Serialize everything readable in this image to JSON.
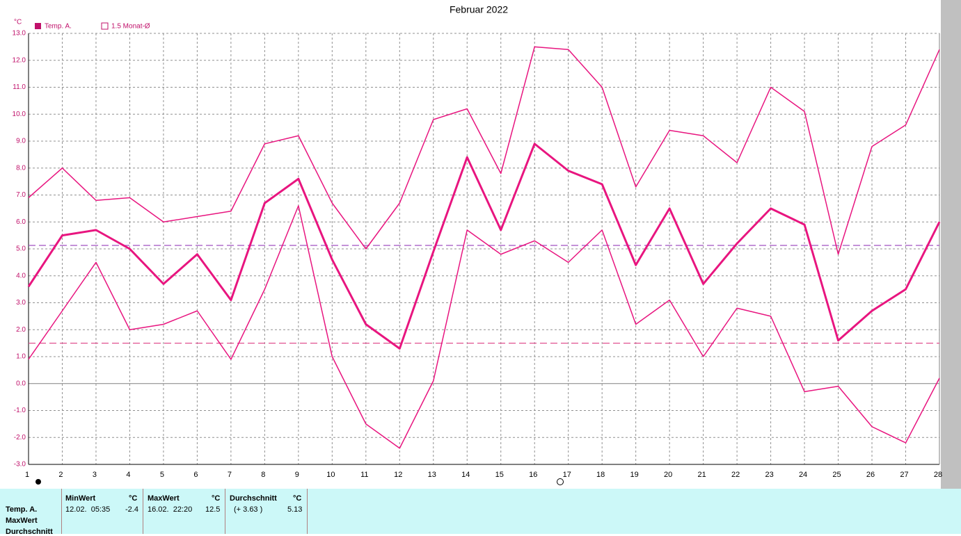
{
  "chart_data": {
    "type": "line",
    "title": "Februar 2022",
    "y_unit": "°C",
    "x": [
      1,
      2,
      3,
      4,
      5,
      6,
      7,
      8,
      9,
      10,
      11,
      12,
      13,
      14,
      15,
      16,
      17,
      18,
      19,
      20,
      21,
      22,
      23,
      24,
      25,
      26,
      27,
      28
    ],
    "xlim": [
      1,
      28
    ],
    "xticks": [
      1,
      2,
      3,
      4,
      5,
      6,
      7,
      8,
      9,
      10,
      11,
      12,
      13,
      14,
      15,
      16,
      17,
      18,
      19,
      20,
      21,
      22,
      23,
      24,
      25,
      26,
      27,
      28
    ],
    "ylim": [
      -3,
      13
    ],
    "yticks": [
      {
        "value": -3,
        "label": "-3.0"
      },
      {
        "value": -2,
        "label": "-2.0"
      },
      {
        "value": -1,
        "label": "-1.0"
      },
      {
        "value": 0,
        "label": "0.0"
      },
      {
        "value": 1,
        "label": "1.0"
      },
      {
        "value": 2,
        "label": "2.0"
      },
      {
        "value": 3,
        "label": "3.0"
      },
      {
        "value": 4,
        "label": "4.0"
      },
      {
        "value": 5,
        "label": "5.0"
      },
      {
        "value": 6,
        "label": "6.0"
      },
      {
        "value": 7,
        "label": "7.0"
      },
      {
        "value": 8,
        "label": "8.0"
      },
      {
        "value": 9,
        "label": "9.0"
      },
      {
        "value": 10,
        "label": "10.0"
      },
      {
        "value": 11,
        "label": "11.0"
      },
      {
        "value": 12,
        "label": "12.0"
      },
      {
        "value": 13,
        "label": "13.0"
      }
    ],
    "grid": true,
    "series": [
      {
        "name": "Temp. A.",
        "color": "#e8157f",
        "width": 3,
        "values": [
          3.6,
          5.5,
          5.7,
          5.0,
          3.7,
          4.8,
          3.1,
          6.7,
          7.6,
          4.6,
          2.2,
          1.3,
          4.9,
          8.4,
          5.7,
          8.9,
          7.9,
          7.4,
          4.4,
          6.5,
          3.7,
          5.2,
          6.5,
          5.9,
          1.6,
          2.7,
          3.5,
          6.0
        ]
      },
      {
        "color": "#e8157f",
        "width": 1.5,
        "values": [
          6.9,
          8.0,
          6.8,
          6.9,
          6.0,
          6.2,
          6.4,
          8.9,
          9.2,
          6.7,
          5.0,
          6.7,
          9.8,
          10.2,
          7.8,
          12.5,
          12.4,
          11.0,
          7.3,
          9.4,
          9.2,
          8.2,
          11.0,
          10.1,
          4.8,
          8.8,
          9.6,
          12.4
        ]
      },
      {
        "color": "#e8157f",
        "width": 1.5,
        "values": [
          0.9,
          2.7,
          4.5,
          2.0,
          2.2,
          2.7,
          0.9,
          3.5,
          6.6,
          1.0,
          -1.5,
          -2.4,
          0.1,
          5.7,
          4.8,
          5.3,
          4.5,
          5.7,
          2.2,
          3.1,
          1.0,
          2.8,
          2.5,
          -0.3,
          -0.1,
          -1.6,
          -2.2,
          0.2
        ]
      }
    ],
    "reference_lines": [
      {
        "value": 1.5,
        "label": "1.5 Monat-Ø",
        "color": "#e05090"
      },
      {
        "value": 5.13,
        "color": "#a050c0"
      }
    ]
  },
  "table": {
    "headers": [
      "MinWert",
      "°C",
      "MaxWert",
      "°C",
      "Durchschnitt",
      "°C"
    ],
    "row_labels": [
      "Temp. A.",
      "MaxWert",
      "Durchschnitt"
    ],
    "rows": [
      [
        "12.02.  05:35",
        "-2.4",
        "16.02.  22:20",
        "12.5",
        "(+ 3.63 )",
        "5.13"
      ]
    ]
  }
}
